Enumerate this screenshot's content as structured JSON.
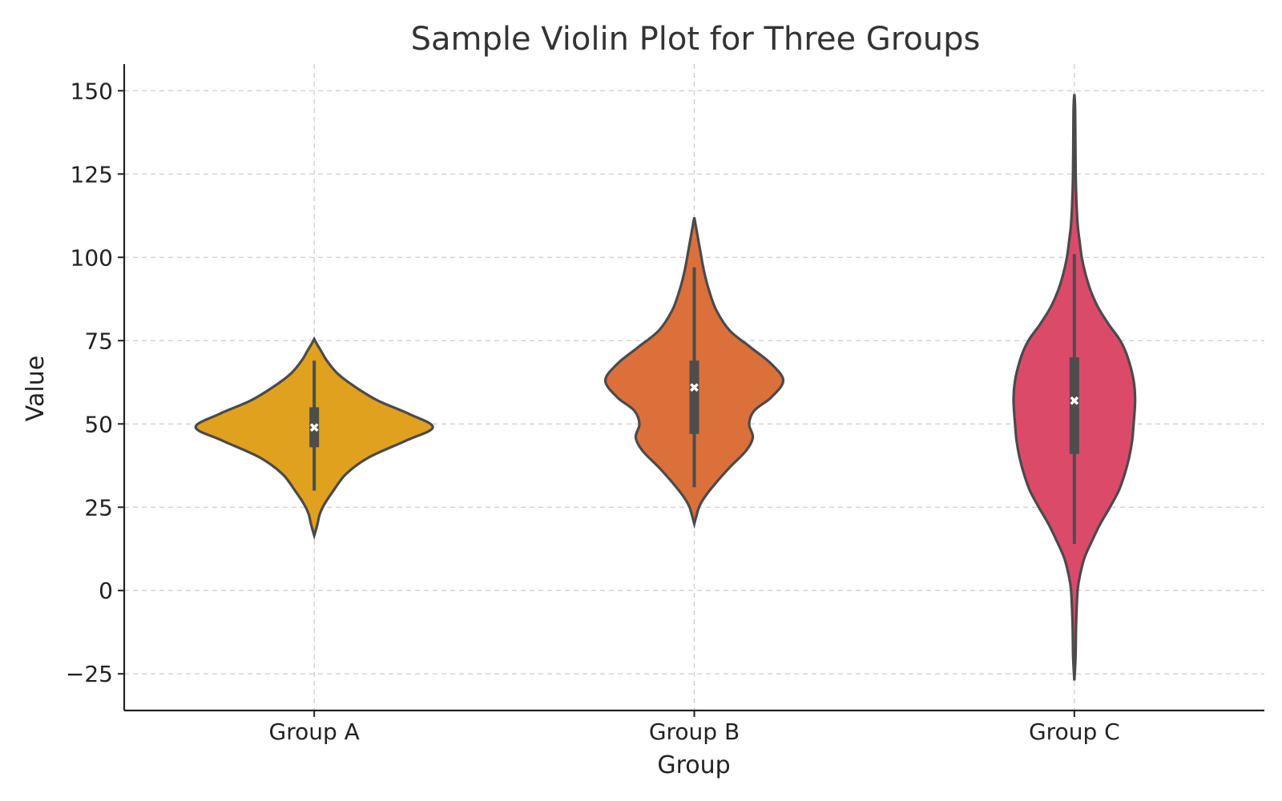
{
  "chart_data": {
    "type": "violin",
    "title": "Sample Violin Plot for Three Groups",
    "xlabel": "Group",
    "ylabel": "Value",
    "ylim": [
      -36,
      158
    ],
    "yticks": [
      -25,
      0,
      25,
      50,
      75,
      100,
      125,
      150
    ],
    "ytick_labels": [
      "−25",
      "0",
      "25",
      "50",
      "75",
      "100",
      "125",
      "150"
    ],
    "grid": true,
    "categories": [
      "Group A",
      "Group B",
      "Group C"
    ],
    "series": [
      {
        "category": "Group A",
        "color": "#e0a11f",
        "median": 49,
        "q1": 43,
        "q3": 55,
        "whisker_low": 30,
        "whisker_high": 69,
        "density": [
          [
            16.5,
            0
          ],
          [
            18,
            0.01
          ],
          [
            20,
            0.022
          ],
          [
            23,
            0.038
          ],
          [
            26,
            0.07
          ],
          [
            30,
            0.13
          ],
          [
            35,
            0.215
          ],
          [
            40,
            0.37
          ],
          [
            45,
            0.62
          ],
          [
            49,
            0.8
          ],
          [
            53,
            0.64
          ],
          [
            57,
            0.43
          ],
          [
            61,
            0.28
          ],
          [
            65,
            0.16
          ],
          [
            69,
            0.085
          ],
          [
            72,
            0.045
          ],
          [
            74,
            0.018
          ],
          [
            75.5,
            0
          ]
        ]
      },
      {
        "category": "Group B",
        "color": "#dc703a",
        "median": 61,
        "q1": 47,
        "q3": 69,
        "whisker_low": 31,
        "whisker_high": 97,
        "density": [
          [
            20,
            0
          ],
          [
            22,
            0.012
          ],
          [
            25,
            0.032
          ],
          [
            28,
            0.07
          ],
          [
            32,
            0.14
          ],
          [
            37,
            0.24
          ],
          [
            42,
            0.35
          ],
          [
            46,
            0.395
          ],
          [
            50,
            0.37
          ],
          [
            54,
            0.405
          ],
          [
            58,
            0.52
          ],
          [
            63,
            0.6
          ],
          [
            68,
            0.52
          ],
          [
            73,
            0.38
          ],
          [
            78,
            0.24
          ],
          [
            84,
            0.15
          ],
          [
            90,
            0.1
          ],
          [
            96,
            0.065
          ],
          [
            102,
            0.04
          ],
          [
            107,
            0.02
          ],
          [
            110,
            0.008
          ],
          [
            112,
            0
          ]
        ]
      },
      {
        "category": "Group C",
        "color": "#dc4a6a",
        "median": 57,
        "q1": 41,
        "q3": 70,
        "whisker_low": 14,
        "whisker_high": 101,
        "density": [
          [
            -27,
            0
          ],
          [
            -20,
            0.008
          ],
          [
            -10,
            0.012
          ],
          [
            0,
            0.022
          ],
          [
            5,
            0.04
          ],
          [
            10,
            0.07
          ],
          [
            15,
            0.12
          ],
          [
            20,
            0.175
          ],
          [
            25,
            0.24
          ],
          [
            30,
            0.3
          ],
          [
            35,
            0.34
          ],
          [
            40,
            0.37
          ],
          [
            45,
            0.39
          ],
          [
            50,
            0.4
          ],
          [
            57,
            0.41
          ],
          [
            63,
            0.4
          ],
          [
            70,
            0.36
          ],
          [
            75,
            0.31
          ],
          [
            80,
            0.23
          ],
          [
            85,
            0.16
          ],
          [
            90,
            0.11
          ],
          [
            95,
            0.075
          ],
          [
            100,
            0.05
          ],
          [
            105,
            0.035
          ],
          [
            110,
            0.022
          ],
          [
            118,
            0.013
          ],
          [
            125,
            0.009
          ],
          [
            135,
            0.007
          ],
          [
            145,
            0.005
          ],
          [
            149,
            0
          ]
        ]
      }
    ]
  }
}
